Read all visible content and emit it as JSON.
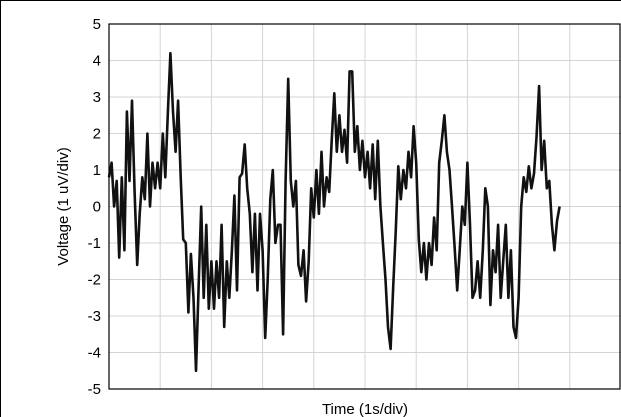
{
  "chart_data": {
    "type": "line",
    "xlabel": "Time (1s/div)",
    "ylabel": "Voltage (1 uV/div)",
    "ylim": [
      -5,
      5
    ],
    "yticks": [
      "5",
      "4",
      "3",
      "2",
      "1",
      "0",
      "-1",
      "-2",
      "-3",
      "-4",
      "-5"
    ],
    "xlim": [
      0,
      10
    ],
    "x_divisions": 10,
    "grid": true,
    "legend": "none",
    "colors": {
      "line": "#111111",
      "grid": "#d4d4d4",
      "axis": "#000000"
    },
    "series": [
      {
        "values": [
          [
            0.0,
            0.8
          ],
          [
            0.05,
            1.2
          ],
          [
            0.1,
            0.0
          ],
          [
            0.15,
            0.7
          ],
          [
            0.2,
            -1.4
          ],
          [
            0.25,
            0.8
          ],
          [
            0.3,
            -1.2
          ],
          [
            0.35,
            2.6
          ],
          [
            0.4,
            0.7
          ],
          [
            0.45,
            2.9
          ],
          [
            0.5,
            0.4
          ],
          [
            0.55,
            -1.6
          ],
          [
            0.6,
            -0.2
          ],
          [
            0.65,
            0.8
          ],
          [
            0.7,
            0.2
          ],
          [
            0.75,
            2.0
          ],
          [
            0.8,
            0.0
          ],
          [
            0.85,
            1.2
          ],
          [
            0.9,
            0.5
          ],
          [
            0.95,
            1.2
          ],
          [
            1.0,
            0.5
          ],
          [
            1.05,
            2.0
          ],
          [
            1.1,
            0.8
          ],
          [
            1.15,
            2.6
          ],
          [
            1.2,
            4.2
          ],
          [
            1.25,
            2.6
          ],
          [
            1.3,
            1.5
          ],
          [
            1.35,
            2.9
          ],
          [
            1.4,
            0.8
          ],
          [
            1.45,
            -0.9
          ],
          [
            1.5,
            -1.0
          ],
          [
            1.55,
            -2.9
          ],
          [
            1.6,
            -1.3
          ],
          [
            1.65,
            -2.5
          ],
          [
            1.7,
            -4.5
          ],
          [
            1.75,
            -2.2
          ],
          [
            1.8,
            0.0
          ],
          [
            1.85,
            -2.5
          ],
          [
            1.9,
            -0.5
          ],
          [
            1.95,
            -2.8
          ],
          [
            2.0,
            -1.5
          ],
          [
            2.05,
            -2.8
          ],
          [
            2.1,
            -1.5
          ],
          [
            2.15,
            -2.5
          ],
          [
            2.2,
            -0.5
          ],
          [
            2.25,
            -3.3
          ],
          [
            2.3,
            -1.5
          ],
          [
            2.35,
            -2.5
          ],
          [
            2.4,
            -1.2
          ],
          [
            2.45,
            0.3
          ],
          [
            2.5,
            -2.3
          ],
          [
            2.55,
            0.8
          ],
          [
            2.6,
            0.9
          ],
          [
            2.65,
            1.7
          ],
          [
            2.7,
            0.5
          ],
          [
            2.75,
            -0.2
          ],
          [
            2.8,
            -1.8
          ],
          [
            2.85,
            -0.2
          ],
          [
            2.9,
            -2.3
          ],
          [
            2.95,
            -0.2
          ],
          [
            3.0,
            -1.2
          ],
          [
            3.05,
            -3.6
          ],
          [
            3.1,
            -2.0
          ],
          [
            3.15,
            0.2
          ],
          [
            3.2,
            1.0
          ],
          [
            3.25,
            -1.0
          ],
          [
            3.3,
            -0.5
          ],
          [
            3.35,
            -0.5
          ],
          [
            3.4,
            -3.5
          ],
          [
            3.45,
            0.7
          ],
          [
            3.5,
            3.5
          ],
          [
            3.55,
            0.7
          ],
          [
            3.6,
            0.0
          ],
          [
            3.65,
            0.7
          ],
          [
            3.7,
            -1.6
          ],
          [
            3.75,
            -1.9
          ],
          [
            3.8,
            -1.2
          ],
          [
            3.85,
            -2.6
          ],
          [
            3.9,
            -1.5
          ],
          [
            3.95,
            0.5
          ],
          [
            4.0,
            -0.3
          ],
          [
            4.05,
            1.0
          ],
          [
            4.1,
            -0.2
          ],
          [
            4.15,
            1.5
          ],
          [
            4.2,
            0.0
          ],
          [
            4.25,
            0.8
          ],
          [
            4.3,
            0.4
          ],
          [
            4.35,
            1.8
          ],
          [
            4.4,
            3.1
          ],
          [
            4.45,
            1.5
          ],
          [
            4.5,
            2.5
          ],
          [
            4.55,
            1.5
          ],
          [
            4.6,
            2.1
          ],
          [
            4.65,
            1.2
          ],
          [
            4.7,
            3.7
          ],
          [
            4.75,
            3.7
          ],
          [
            4.8,
            1.5
          ],
          [
            4.85,
            2.2
          ],
          [
            4.9,
            1.0
          ],
          [
            4.95,
            1.8
          ],
          [
            5.0,
            0.8
          ],
          [
            5.05,
            1.5
          ],
          [
            5.1,
            0.5
          ],
          [
            5.15,
            1.7
          ],
          [
            5.2,
            0.2
          ],
          [
            5.25,
            1.8
          ],
          [
            5.3,
            0.0
          ],
          [
            5.35,
            -1.0
          ],
          [
            5.4,
            -2.0
          ],
          [
            5.45,
            -3.3
          ],
          [
            5.5,
            -3.9
          ],
          [
            5.55,
            -2.2
          ],
          [
            5.6,
            -0.7
          ],
          [
            5.65,
            1.1
          ],
          [
            5.7,
            0.2
          ],
          [
            5.75,
            1.0
          ],
          [
            5.8,
            0.5
          ],
          [
            5.85,
            1.5
          ],
          [
            5.9,
            0.8
          ],
          [
            5.95,
            2.2
          ],
          [
            6.0,
            1.2
          ],
          [
            6.05,
            -0.9
          ],
          [
            6.1,
            -1.8
          ],
          [
            6.15,
            -1.0
          ],
          [
            6.2,
            -2.0
          ],
          [
            6.25,
            -1.0
          ],
          [
            6.3,
            -1.6
          ],
          [
            6.35,
            -0.3
          ],
          [
            6.4,
            -1.2
          ],
          [
            6.45,
            1.2
          ],
          [
            6.5,
            1.8
          ],
          [
            6.55,
            2.5
          ],
          [
            6.6,
            1.5
          ],
          [
            6.65,
            1.0
          ],
          [
            6.7,
            0.0
          ],
          [
            6.75,
            -1.1
          ],
          [
            6.8,
            -2.3
          ],
          [
            6.85,
            -1.2
          ],
          [
            6.9,
            0.0
          ],
          [
            6.95,
            -0.5
          ],
          [
            7.0,
            1.2
          ],
          [
            7.05,
            -0.5
          ],
          [
            7.1,
            -2.5
          ],
          [
            7.15,
            -2.3
          ],
          [
            7.2,
            -1.5
          ],
          [
            7.25,
            -2.5
          ],
          [
            7.3,
            -1.2
          ],
          [
            7.35,
            0.5
          ],
          [
            7.4,
            0.0
          ],
          [
            7.45,
            -2.7
          ],
          [
            7.5,
            -1.2
          ],
          [
            7.55,
            -1.8
          ],
          [
            7.6,
            -0.5
          ],
          [
            7.65,
            -2.5
          ],
          [
            7.7,
            -1.5
          ],
          [
            7.75,
            -0.5
          ],
          [
            7.8,
            -2.5
          ],
          [
            7.85,
            -1.2
          ],
          [
            7.9,
            -3.3
          ],
          [
            7.95,
            -3.6
          ],
          [
            8.0,
            -2.5
          ],
          [
            8.05,
            0.0
          ],
          [
            8.1,
            0.8
          ],
          [
            8.15,
            0.4
          ],
          [
            8.2,
            1.1
          ],
          [
            8.25,
            0.5
          ],
          [
            8.3,
            0.9
          ],
          [
            8.35,
            1.9
          ],
          [
            8.4,
            3.3
          ],
          [
            8.45,
            1.0
          ],
          [
            8.5,
            1.8
          ],
          [
            8.55,
            0.5
          ],
          [
            8.6,
            0.7
          ],
          [
            8.65,
            -0.5
          ],
          [
            8.7,
            -1.2
          ],
          [
            8.75,
            -0.4
          ],
          [
            8.8,
            0.0
          ]
        ]
      }
    ]
  }
}
